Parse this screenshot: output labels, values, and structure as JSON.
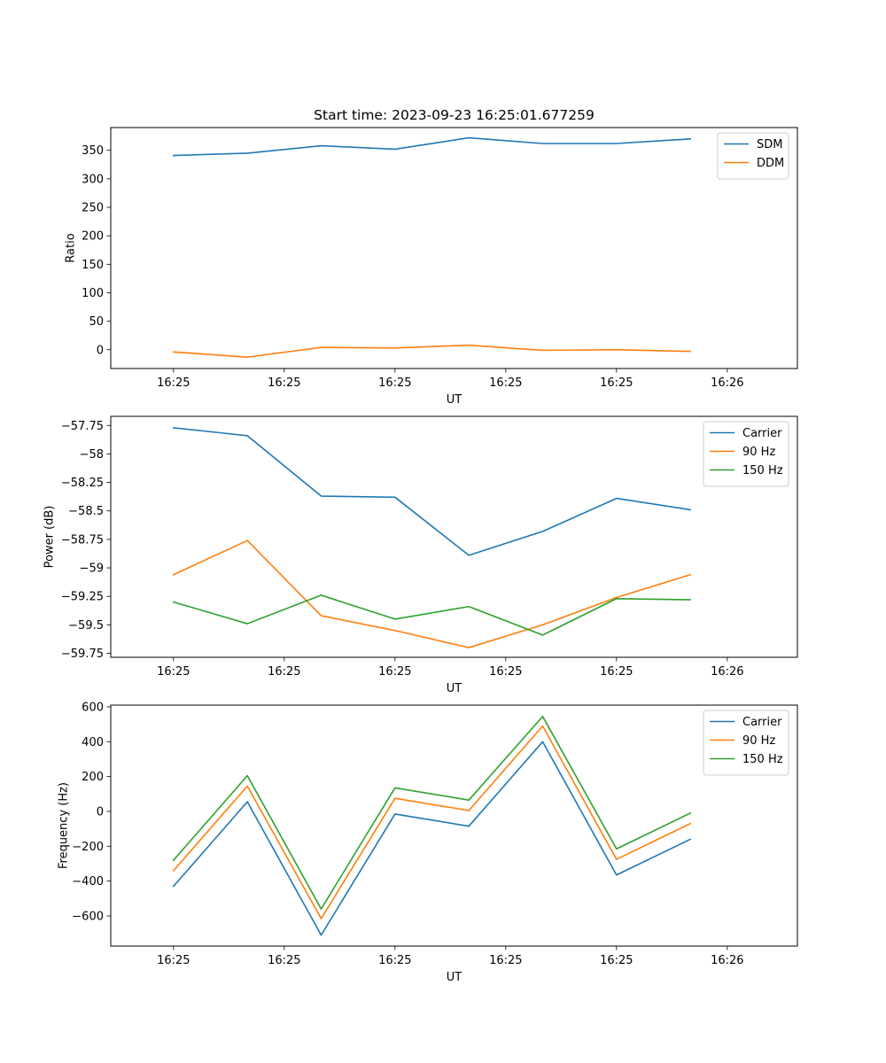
{
  "chart_data": [
    {
      "type": "line",
      "title": "Start time: 2023-09-23 16:25:01.677259",
      "xlabel": "UT",
      "ylabel": "Ratio",
      "xlim": [
        -0.85,
        8.45
      ],
      "ylim": [
        -33,
        390
      ],
      "xticks": [
        {
          "v": 0,
          "label": "16:25"
        },
        {
          "v": 1.5,
          "label": "16:25"
        },
        {
          "v": 3,
          "label": "16:25"
        },
        {
          "v": 4.5,
          "label": "16:25"
        },
        {
          "v": 6,
          "label": "16:25"
        },
        {
          "v": 7.5,
          "label": "16:26"
        }
      ],
      "yticks": [
        0,
        50,
        100,
        150,
        200,
        250,
        300,
        350
      ],
      "legend_position": "top-right",
      "x": [
        0,
        1,
        2,
        3,
        4,
        5,
        6,
        7
      ],
      "series": [
        {
          "name": "SDM",
          "color": "#1f77b4",
          "values": [
            341,
            345,
            358,
            352,
            372,
            362,
            362,
            370
          ]
        },
        {
          "name": "DDM",
          "color": "#ff7f0e",
          "values": [
            -4,
            -13,
            4,
            3,
            8,
            -1,
            0,
            -3
          ]
        }
      ]
    },
    {
      "type": "line",
      "title": "",
      "xlabel": "UT",
      "ylabel": "Power (dB)",
      "xlim": [
        -0.85,
        8.45
      ],
      "ylim": [
        -59.785,
        -57.67
      ],
      "xticks": [
        {
          "v": 0,
          "label": "16:25"
        },
        {
          "v": 1.5,
          "label": "16:25"
        },
        {
          "v": 3,
          "label": "16:25"
        },
        {
          "v": 4.5,
          "label": "16:25"
        },
        {
          "v": 6,
          "label": "16:25"
        },
        {
          "v": 7.5,
          "label": "16:26"
        }
      ],
      "yticks": [
        -59.75,
        -59.5,
        -59.25,
        -59.0,
        -58.75,
        -58.5,
        -58.25,
        -58.0,
        -57.75
      ],
      "legend_position": "top-right",
      "x": [
        0,
        1,
        2,
        3,
        4,
        5,
        6,
        7
      ],
      "series": [
        {
          "name": "Carrier",
          "color": "#1f77b4",
          "values": [
            -57.77,
            -57.84,
            -58.37,
            -58.38,
            -58.89,
            -58.68,
            -58.39,
            -58.49
          ]
        },
        {
          "name": "90 Hz",
          "color": "#ff7f0e",
          "values": [
            -59.06,
            -58.76,
            -59.42,
            -59.55,
            -59.7,
            -59.5,
            -59.26,
            -59.06
          ]
        },
        {
          "name": "150 Hz",
          "color": "#2ca02c",
          "values": [
            -59.3,
            -59.49,
            -59.24,
            -59.45,
            -59.34,
            -59.59,
            -59.27,
            -59.28
          ]
        }
      ]
    },
    {
      "type": "line",
      "title": "",
      "xlabel": "UT",
      "ylabel": "Frequency (Hz)",
      "xlim": [
        -0.85,
        8.45
      ],
      "ylim": [
        -773,
        610
      ],
      "xticks": [
        {
          "v": 0,
          "label": "16:25"
        },
        {
          "v": 1.5,
          "label": "16:25"
        },
        {
          "v": 3,
          "label": "16:25"
        },
        {
          "v": 4.5,
          "label": "16:25"
        },
        {
          "v": 6,
          "label": "16:25"
        },
        {
          "v": 7.5,
          "label": "16:26"
        }
      ],
      "yticks": [
        -600,
        -400,
        -200,
        0,
        200,
        400,
        600
      ],
      "legend_position": "top-right",
      "x": [
        0,
        1,
        2,
        3,
        4,
        5,
        6,
        7
      ],
      "series": [
        {
          "name": "Carrier",
          "color": "#1f77b4",
          "values": [
            -430,
            55,
            -710,
            -15,
            -85,
            400,
            -365,
            -160
          ]
        },
        {
          "name": "90 Hz",
          "color": "#ff7f0e",
          "values": [
            -340,
            145,
            -615,
            75,
            5,
            490,
            -275,
            -70
          ]
        },
        {
          "name": "150 Hz",
          "color": "#2ca02c",
          "values": [
            -280,
            205,
            -560,
            135,
            65,
            545,
            -215,
            -10
          ]
        }
      ]
    }
  ]
}
